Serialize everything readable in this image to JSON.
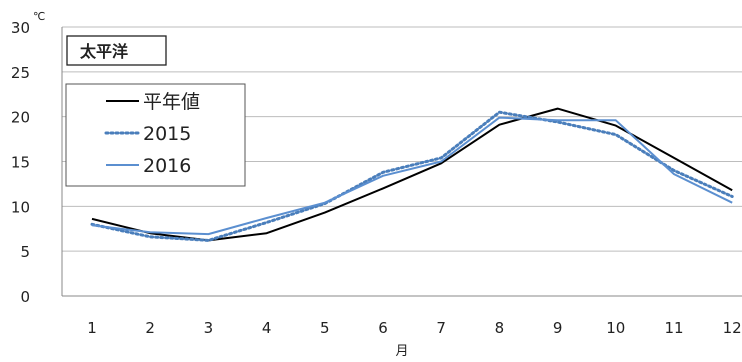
{
  "chart_data": {
    "type": "line",
    "title": "太平洋",
    "xlabel": "月",
    "ylabel": "",
    "y_unit": "℃",
    "categories": [
      "1",
      "2",
      "3",
      "4",
      "5",
      "6",
      "7",
      "8",
      "9",
      "10",
      "11",
      "12"
    ],
    "ylim": [
      0,
      30
    ],
    "yticks": [
      "0",
      "5",
      "10",
      "15",
      "20",
      "25",
      "30"
    ],
    "grid": true,
    "legend_position": "upper-left",
    "series": [
      {
        "name": "平年値",
        "values": [
          8.6,
          7.0,
          6.2,
          7.0,
          9.3,
          12.0,
          14.8,
          19.1,
          20.9,
          19.0,
          15.4,
          11.8
        ],
        "color": "#000000",
        "style": "solid"
      },
      {
        "name": "2015",
        "values": [
          8.0,
          6.6,
          6.2,
          8.2,
          10.3,
          13.8,
          15.4,
          20.5,
          19.4,
          18.0,
          14.0,
          11.1
        ],
        "color": "#4a7ebb",
        "style": "dotted"
      },
      {
        "name": "2016",
        "values": [
          7.9,
          7.1,
          6.9,
          8.7,
          10.4,
          13.4,
          15.0,
          19.9,
          19.6,
          19.6,
          13.6,
          10.4
        ],
        "color": "#5b8fd0",
        "style": "solid"
      }
    ]
  }
}
